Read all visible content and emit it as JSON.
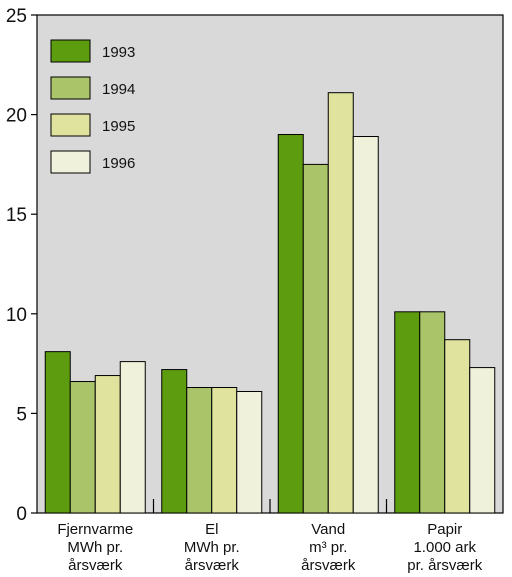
{
  "chart_data": {
    "type": "bar",
    "categories": [
      [
        "Fjernvarme",
        "MWh pr.",
        "årsværk"
      ],
      [
        "El",
        "MWh pr.",
        "årsværk"
      ],
      [
        "Vand",
        "m³ pr.",
        "årsværk"
      ],
      [
        "Papir",
        "1.000 ark",
        "pr. årsværk"
      ]
    ],
    "series": [
      {
        "name": "1993",
        "color": "#5e9c0f",
        "values": [
          8.1,
          7.2,
          19.0,
          10.1
        ]
      },
      {
        "name": "1994",
        "color": "#aac46a",
        "values": [
          6.6,
          6.3,
          17.5,
          10.1
        ]
      },
      {
        "name": "1995",
        "color": "#dfe39e",
        "values": [
          6.9,
          6.3,
          21.1,
          8.7
        ]
      },
      {
        "name": "1996",
        "color": "#f0f1da",
        "values": [
          7.6,
          6.1,
          18.9,
          7.3
        ]
      }
    ],
    "ylim": [
      0,
      25
    ],
    "yticks": [
      0,
      5,
      10,
      15,
      20,
      25
    ],
    "legend_position": "top-left",
    "grid": false,
    "plot_background": "#d9d9d9"
  }
}
